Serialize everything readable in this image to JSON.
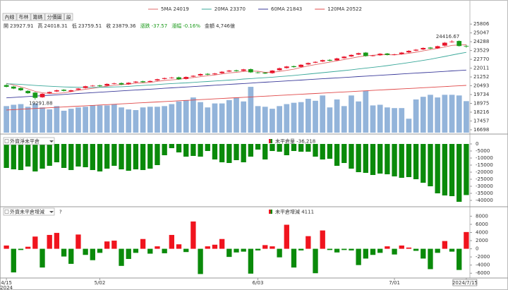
{
  "chart_data": [
    {
      "type": "candlestick",
      "tabs": [
        "內線",
        "布林",
        "籌碼",
        "分價圖",
        "設"
      ],
      "info": [
        {
          "label": "開",
          "value": 23927.91
        },
        {
          "label": "高",
          "value": 24018.31
        },
        {
          "label": "低",
          "value": 23759.51
        },
        {
          "label": "收",
          "value": 23879.36
        },
        {
          "label": "漲跌",
          "value": -37.57
        },
        {
          "label": "漲幅",
          "value": "-0.16%"
        },
        {
          "label": "金額",
          "value": "4,746億"
        }
      ],
      "info_change_color": "#1a9a1a",
      "categories": [
        "4/15",
        null,
        null,
        null,
        null,
        null,
        null,
        null,
        null,
        null,
        null,
        null,
        null,
        "5/02",
        null,
        null,
        null,
        null,
        null,
        null,
        null,
        null,
        null,
        null,
        null,
        null,
        null,
        null,
        null,
        null,
        null,
        null,
        null,
        null,
        null,
        "6/03",
        null,
        null,
        null,
        null,
        null,
        null,
        null,
        null,
        null,
        null,
        null,
        null,
        null,
        null,
        null,
        null,
        null,
        null,
        "7/01",
        null,
        null,
        null,
        null,
        null,
        null,
        null,
        null,
        null,
        "2024/7/15"
      ],
      "x_year": "2024",
      "open": [
        20550,
        20420,
        20300,
        20050,
        19900,
        19500,
        19850,
        20000,
        20150,
        20000,
        20150,
        20300,
        20480,
        20520,
        20500,
        20680,
        20720,
        20620,
        20780,
        20880,
        20820,
        20950,
        21080,
        21150,
        21220,
        21080,
        21280,
        21380,
        21520,
        21480,
        21580,
        21720,
        21820,
        21780,
        21920,
        21640,
        21620,
        21580,
        21830,
        22020,
        22180,
        22120,
        22330,
        22480,
        22580,
        22720,
        22680,
        22870,
        23020,
        23180,
        23350,
        23070,
        23120,
        23270,
        23170,
        23220,
        23370,
        23520,
        23620,
        23780,
        23720,
        23950,
        24250,
        24350,
        23927.91
      ],
      "high": [
        20620,
        20480,
        20350,
        20110,
        19960,
        19850,
        20000,
        20160,
        20200,
        20150,
        20300,
        20500,
        20560,
        20580,
        20700,
        20760,
        20780,
        20800,
        20900,
        20930,
        20950,
        21100,
        21200,
        21260,
        21280,
        21300,
        21400,
        21560,
        21580,
        21600,
        21750,
        21860,
        21880,
        21950,
        21980,
        21700,
        21680,
        21850,
        22060,
        22200,
        22230,
        22350,
        22500,
        22600,
        22750,
        22780,
        22900,
        23050,
        23200,
        23350,
        23400,
        23150,
        23300,
        23320,
        23250,
        23400,
        23560,
        23650,
        23800,
        23830,
        23950,
        24260,
        24416.67,
        24400,
        24018.31
      ],
      "low": [
        20350,
        20200,
        20050,
        19800,
        19291.88,
        19450,
        19800,
        19950,
        20000,
        19950,
        20100,
        20250,
        20420,
        20400,
        20450,
        20620,
        20550,
        20570,
        20720,
        20750,
        20770,
        20900,
        21030,
        21100,
        21000,
        21030,
        21230,
        21330,
        21400,
        21430,
        21530,
        21670,
        21700,
        21730,
        21600,
        21550,
        21500,
        21530,
        21780,
        21970,
        22050,
        22070,
        22280,
        22430,
        22530,
        22600,
        22630,
        22820,
        22970,
        23130,
        23000,
        23020,
        23070,
        23100,
        23120,
        23170,
        23320,
        23470,
        23570,
        23650,
        23670,
        23900,
        24200,
        23870,
        23759.51
      ],
      "close": [
        20400,
        20250,
        20100,
        19850,
        19450,
        19800,
        19950,
        20100,
        20050,
        20100,
        20250,
        20450,
        20500,
        20450,
        20650,
        20700,
        20600,
        20750,
        20850,
        20800,
        20900,
        21050,
        21150,
        21200,
        21050,
        21250,
        21350,
        21500,
        21450,
        21550,
        21700,
        21800,
        21750,
        21900,
        21650,
        21600,
        21550,
        21800,
        22000,
        22150,
        22100,
        22300,
        22450,
        22550,
        22700,
        22650,
        22850,
        23000,
        23150,
        23300,
        23050,
        23100,
        23250,
        23150,
        23200,
        23350,
        23500,
        23600,
        23750,
        23700,
        23900,
        24200,
        24300,
        23917,
        23879.36
      ],
      "up_color": "#e8142a",
      "down_color": "#1a9a1a",
      "series": [
        {
          "name": "5MA 24019",
          "color": "#e06a6a",
          "values": [
            20700,
            20550,
            20400,
            20220,
            20010,
            19890,
            19820,
            19840,
            19880,
            19990,
            20090,
            20190,
            20270,
            20360,
            20460,
            20550,
            20590,
            20630,
            20710,
            20740,
            20780,
            20870,
            20950,
            21000,
            21050,
            21140,
            21200,
            21270,
            21360,
            21420,
            21510,
            21600,
            21650,
            21720,
            21760,
            21740,
            21650,
            21660,
            21720,
            21820,
            21920,
            22070,
            22200,
            22310,
            22420,
            22530,
            22640,
            22750,
            22870,
            22990,
            23070,
            23120,
            23170,
            23170,
            23150,
            23210,
            23290,
            23380,
            23500,
            23610,
            23710,
            23830,
            23970,
            24010,
            24019
          ]
        },
        {
          "name": "20MA 23370",
          "color": "#3aa89a",
          "values": [
            20660,
            20640,
            20610,
            20570,
            20520,
            20480,
            20450,
            20420,
            20390,
            20370,
            20360,
            20350,
            20350,
            20360,
            20370,
            20390,
            20410,
            20440,
            20480,
            20520,
            20560,
            20600,
            20640,
            20680,
            20710,
            20740,
            20780,
            20820,
            20860,
            20900,
            20940,
            20980,
            21020,
            21070,
            21110,
            21150,
            21190,
            21230,
            21280,
            21330,
            21380,
            21440,
            21500,
            21560,
            21620,
            21680,
            21740,
            21800,
            21870,
            21940,
            22010,
            22080,
            22150,
            22230,
            22310,
            22400,
            22490,
            22580,
            22680,
            22780,
            22900,
            23020,
            23140,
            23260,
            23370
          ]
        },
        {
          "name": "60MA 21843",
          "color": "#3a3a9a",
          "values": [
            19450,
            19487,
            19525,
            19562,
            19600,
            19637,
            19674,
            19712,
            19749,
            19787,
            19824,
            19861,
            19899,
            19936,
            19974,
            20011,
            20048,
            20086,
            20123,
            20161,
            20198,
            20235,
            20273,
            20310,
            20348,
            20385,
            20422,
            20460,
            20497,
            20535,
            20572,
            20609,
            20647,
            20684,
            20722,
            20759,
            20796,
            20834,
            20871,
            20909,
            20946,
            20983,
            21021,
            21058,
            21096,
            21133,
            21170,
            21208,
            21245,
            21283,
            21320,
            21357,
            21395,
            21432,
            21470,
            21507,
            21544,
            21582,
            21619,
            21657,
            21694,
            21731,
            21769,
            21806,
            21843
          ]
        },
        {
          "name": "120MA 20522",
          "color": "#e04848",
          "values": [
            18400,
            18433,
            18466,
            18500,
            18533,
            18566,
            18599,
            18632,
            18665,
            18698,
            18732,
            18765,
            18798,
            18831,
            18864,
            18897,
            18931,
            18964,
            18997,
            19030,
            19063,
            19096,
            19130,
            19163,
            19196,
            19229,
            19262,
            19295,
            19329,
            19362,
            19395,
            19428,
            19461,
            19494,
            19528,
            19561,
            19594,
            19627,
            19660,
            19693,
            19727,
            19760,
            19793,
            19826,
            19859,
            19892,
            19926,
            19959,
            19992,
            20025,
            20058,
            20091,
            20125,
            20158,
            20191,
            20224,
            20257,
            20290,
            20324,
            20357,
            20390,
            20423,
            20456,
            20489,
            20522
          ]
        }
      ],
      "volume": {
        "color": "#93b4da",
        "axis": "y2",
        "values": [
          4000,
          4200,
          4300,
          3900,
          4400,
          3800,
          3500,
          4000,
          3300,
          3600,
          3800,
          3900,
          4100,
          4100,
          4100,
          4300,
          3800,
          3500,
          3400,
          3800,
          3900,
          3900,
          4000,
          4300,
          4700,
          4900,
          5300,
          4600,
          3800,
          4400,
          4400,
          4900,
          5300,
          4700,
          6900,
          4000,
          3900,
          3600,
          4000,
          4300,
          4500,
          4600,
          5100,
          4800,
          5600,
          3800,
          5000,
          4000,
          5600,
          4700,
          6300,
          4100,
          4200,
          3800,
          3700,
          3700,
          2100,
          5000,
          5400,
          5700,
          5300,
          5700,
          5700,
          5600,
          4746
        ]
      },
      "y2lim": [
        0,
        17000
      ],
      "annotations": [
        {
          "label": "24416.67",
          "value": 24416.67,
          "color": "#e0307a"
        },
        {
          "label": "19291.88",
          "value": 19291.88,
          "color": "#1a9a1a"
        }
      ],
      "ylim": [
        16450,
        26180
      ],
      "yticks": [
        25806,
        25047,
        24288,
        23529,
        22770,
        22011,
        21252,
        20493,
        19734,
        18975,
        18216,
        17457,
        16698
      ]
    },
    {
      "type": "bar",
      "selector": "外資淨未平倉",
      "legend_label": "未平倉量 -36,218",
      "positive_color": "#e8142a",
      "negative_color": "#0a8a0a",
      "values": [
        -17000,
        -18000,
        -18500,
        -16000,
        -19500,
        -17500,
        -15500,
        -13000,
        -17000,
        -18500,
        -16000,
        -16500,
        -18500,
        -19500,
        -17500,
        -15500,
        -18000,
        -19000,
        -18000,
        -18500,
        -17500,
        -15000,
        -8000,
        -3000,
        -6000,
        -9000,
        -8500,
        -9000,
        -5000,
        -11000,
        -13000,
        -13500,
        -11500,
        -13000,
        -9000,
        -4000,
        -11000,
        -5000,
        -5500,
        -8000,
        -5000,
        -5500,
        -5500,
        -9000,
        -11000,
        -10500,
        -15500,
        -13500,
        -17500,
        -20000,
        -20500,
        -22000,
        -21000,
        -21500,
        -23000,
        -24000,
        -23500,
        -25000,
        -27500,
        -30000,
        -35000,
        -36500,
        -37000,
        -41000,
        -36218
      ],
      "ylim": [
        -43000,
        4000
      ],
      "yticks": [
        0,
        -5000,
        -10000,
        -15000,
        -20000,
        -25000,
        -30000,
        -35000,
        -40000
      ]
    },
    {
      "type": "bar",
      "selector": "外資未平倉增減",
      "help": "?",
      "legend_label": "未平倉增減 4111",
      "positive_color": "#f0141e",
      "negative_color": "#0a8a0a",
      "values": [
        800,
        -5800,
        -300,
        500,
        3000,
        -4600,
        3400,
        3900,
        -1900,
        -3700,
        3500,
        -1500,
        -2800,
        -1000,
        1800,
        2000,
        -4200,
        -2500,
        -1000,
        2400,
        -1200,
        600,
        -1100,
        3400,
        1100,
        -800,
        6700,
        -6200,
        600,
        1000,
        2400,
        -2000,
        -900,
        -700,
        -6100,
        -400,
        900,
        600,
        -2100,
        5900,
        -4600,
        -400,
        3100,
        -6000,
        4500,
        -300,
        -900,
        -300,
        -400,
        -4000,
        -2400,
        -1500,
        -1000,
        600,
        -1400,
        800,
        300,
        -500,
        -2400,
        -5000,
        -1000,
        1900,
        -700,
        -5200,
        4111
      ],
      "ylim": [
        -7000,
        9800
      ],
      "yticks": [
        8000,
        6000,
        4000,
        2000,
        0,
        -2000,
        -4000,
        -6000
      ]
    }
  ]
}
